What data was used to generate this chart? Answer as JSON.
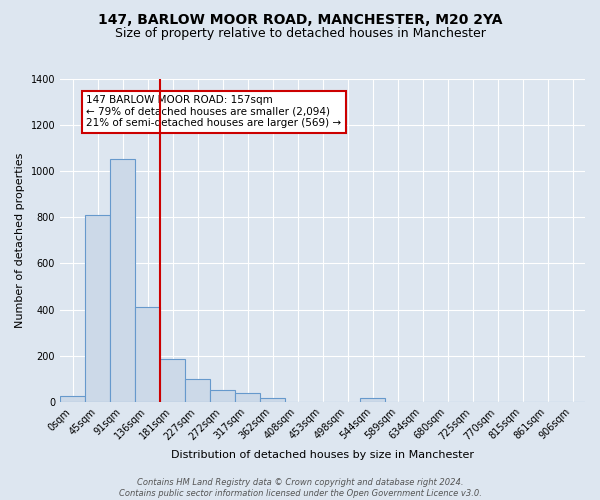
{
  "title": "147, BARLOW MOOR ROAD, MANCHESTER, M20 2YA",
  "subtitle": "Size of property relative to detached houses in Manchester",
  "xlabel": "Distribution of detached houses by size in Manchester",
  "ylabel": "Number of detached properties",
  "bar_labels": [
    "0sqm",
    "45sqm",
    "91sqm",
    "136sqm",
    "181sqm",
    "227sqm",
    "272sqm",
    "317sqm",
    "362sqm",
    "408sqm",
    "453sqm",
    "498sqm",
    "544sqm",
    "589sqm",
    "634sqm",
    "680sqm",
    "725sqm",
    "770sqm",
    "815sqm",
    "861sqm",
    "906sqm"
  ],
  "bar_values": [
    25,
    810,
    1055,
    410,
    185,
    100,
    50,
    38,
    16,
    0,
    0,
    0,
    15,
    0,
    0,
    0,
    0,
    0,
    0,
    0,
    0
  ],
  "bar_color": "#ccd9e8",
  "bar_edge_color": "#6699cc",
  "vline_x": 3.5,
  "vline_color": "#cc0000",
  "ylim": [
    0,
    1400
  ],
  "yticks": [
    0,
    200,
    400,
    600,
    800,
    1000,
    1200,
    1400
  ],
  "annotation_text": "147 BARLOW MOOR ROAD: 157sqm\n← 79% of detached houses are smaller (2,094)\n21% of semi-detached houses are larger (569) →",
  "annotation_box_color": "#ffffff",
  "annotation_box_edge": "#cc0000",
  "background_color": "#dde6f0",
  "plot_bg_color": "#dde6f0",
  "footer_line1": "Contains HM Land Registry data © Crown copyright and database right 2024.",
  "footer_line2": "Contains public sector information licensed under the Open Government Licence v3.0.",
  "title_fontsize": 10,
  "subtitle_fontsize": 9,
  "axis_label_fontsize": 8,
  "tick_fontsize": 7,
  "annotation_fontsize": 7.5,
  "footer_fontsize": 6
}
